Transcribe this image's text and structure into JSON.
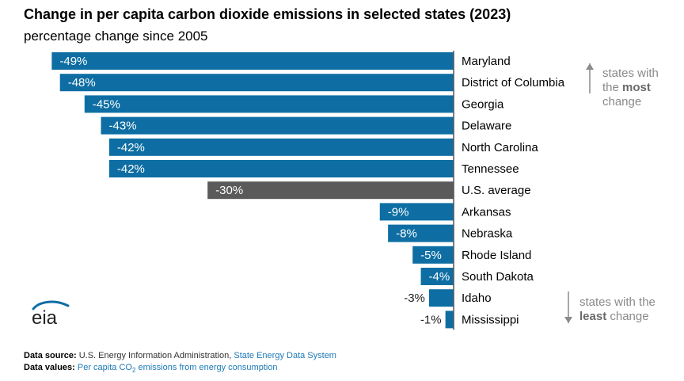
{
  "title": "Change in per capita carbon dioxide emissions in selected states (2023)",
  "subtitle": "percentage change since 2005",
  "colors": {
    "bar": "#0e6ea3",
    "average_bar": "#5a5a5a",
    "axis": "#555555",
    "note_text": "#8a8a8a",
    "link": "#1e7ab8"
  },
  "chart_data": {
    "type": "bar",
    "orientation": "horizontal",
    "title": "Change in per capita carbon dioxide emissions in selected states (2023)",
    "subtitle": "percentage change since 2005",
    "xlim": [
      -50,
      0
    ],
    "categories": [
      "Maryland",
      "District of Columbia",
      "Georgia",
      "Delaware",
      "North Carolina",
      "Tennessee",
      "U.S. average",
      "Arkansas",
      "Nebraska",
      "Rhode Island",
      "South Dakota",
      "Idaho",
      "Mississippi"
    ],
    "values": [
      -49,
      -48,
      -45,
      -43,
      -42,
      -42,
      -30,
      -9,
      -8,
      -5,
      -4,
      -3,
      -1
    ],
    "labels": [
      "-49%",
      "-48%",
      "-45%",
      "-43%",
      "-42%",
      "-42%",
      "-30%",
      "-9%",
      "-8%",
      "-5%",
      "-4%",
      "-3%",
      "-1%"
    ],
    "highlight_category": "U.S. average",
    "grid": false
  },
  "annotations": {
    "top": {
      "line1": "states with",
      "line2_pre": "the ",
      "line2_bold": "most",
      "line3": "change"
    },
    "bottom": {
      "line1": "states with the",
      "line2_bold": "least",
      "line2_post": " change"
    }
  },
  "logo": {
    "text": "eia"
  },
  "footer": {
    "source_label": "Data source:",
    "source_text": "U.S. Energy Information Administration,",
    "source_link": "State Energy Data System",
    "values_label": "Data values:",
    "values_link_pre": "Per capita CO",
    "values_link_sub": "2",
    "values_link_post": " emissions from energy consumption"
  }
}
